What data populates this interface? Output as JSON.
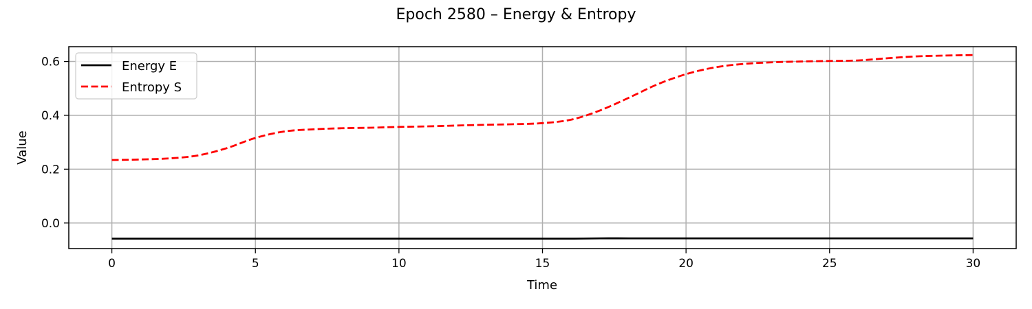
{
  "chart_data": {
    "type": "line",
    "title": "Epoch 2580 – Energy & Entropy",
    "xlabel": "Time",
    "ylabel": "Value",
    "xlim": [
      -1.5,
      31.5
    ],
    "ylim": [
      -0.095,
      0.655
    ],
    "xticks": [
      0,
      5,
      10,
      15,
      20,
      25,
      30
    ],
    "yticks": [
      0.0,
      0.2,
      0.4,
      0.6
    ],
    "xtick_labels": [
      "0",
      "5",
      "10",
      "15",
      "20",
      "25",
      "30"
    ],
    "ytick_labels": [
      "0.0",
      "0.2",
      "0.4",
      "0.6"
    ],
    "grid": true,
    "legend_position": "upper-left",
    "x": [
      0,
      1,
      2,
      3,
      4,
      5,
      6,
      7,
      8,
      9,
      10,
      11,
      12,
      13,
      14,
      15,
      16,
      17,
      18,
      19,
      20,
      21,
      22,
      23,
      24,
      25,
      26,
      27,
      28,
      29,
      30
    ],
    "series": [
      {
        "name": "Energy E",
        "color": "#000000",
        "style": "solid",
        "values": [
          -0.058,
          -0.058,
          -0.058,
          -0.058,
          -0.058,
          -0.058,
          -0.058,
          -0.058,
          -0.058,
          -0.058,
          -0.058,
          -0.058,
          -0.058,
          -0.058,
          -0.058,
          -0.058,
          -0.058,
          -0.057,
          -0.057,
          -0.057,
          -0.057,
          -0.057,
          -0.057,
          -0.057,
          -0.057,
          -0.057,
          -0.057,
          -0.057,
          -0.057,
          -0.057,
          -0.057
        ]
      },
      {
        "name": "Entropy S",
        "color": "#ff0000",
        "style": "dashed",
        "values": [
          0.234,
          0.236,
          0.24,
          0.251,
          0.278,
          0.316,
          0.34,
          0.348,
          0.352,
          0.354,
          0.357,
          0.359,
          0.362,
          0.365,
          0.367,
          0.371,
          0.384,
          0.418,
          0.465,
          0.515,
          0.553,
          0.578,
          0.591,
          0.597,
          0.6,
          0.602,
          0.604,
          0.612,
          0.619,
          0.622,
          0.624
        ]
      }
    ]
  }
}
